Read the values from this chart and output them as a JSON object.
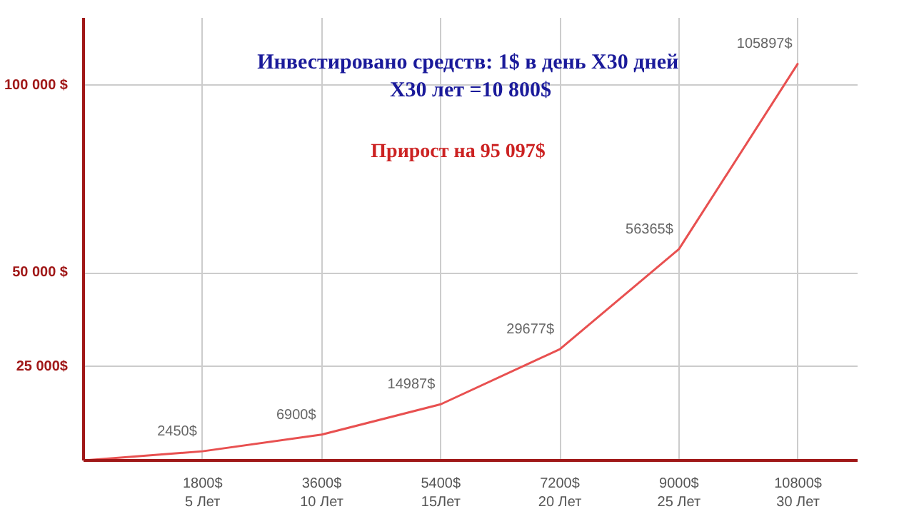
{
  "chart_data": {
    "type": "line",
    "title": "Инвестировано средств:  1$ в день X30 дней\nX30 лет =10 800$",
    "subtitle": "Прирост на      95 097$",
    "categories": [
      null,
      "1800$\n5 Лет",
      "3600$\n10 Лет",
      "5400$\n15Лет",
      "7200$\n20 Лет",
      "9000$\n25 Лет",
      "10800$\n30 Лет"
    ],
    "series": [
      {
        "color": "#e85050",
        "values": [
          0,
          2450,
          6900,
          14987,
          29677,
          56365,
          105897
        ],
        "value_labels": [
          null,
          "2450$",
          "6900$",
          "14987$",
          "29677$",
          "56365$",
          "105897$"
        ]
      }
    ],
    "ylim": [
      0,
      118000
    ],
    "yticks": [
      {
        "value": 25000,
        "label": "25 000$"
      },
      {
        "value": 50000,
        "label": "50 000 $"
      },
      {
        "value": 100000,
        "label": "100 000 $"
      }
    ],
    "grid": true,
    "line_style": "solid"
  }
}
